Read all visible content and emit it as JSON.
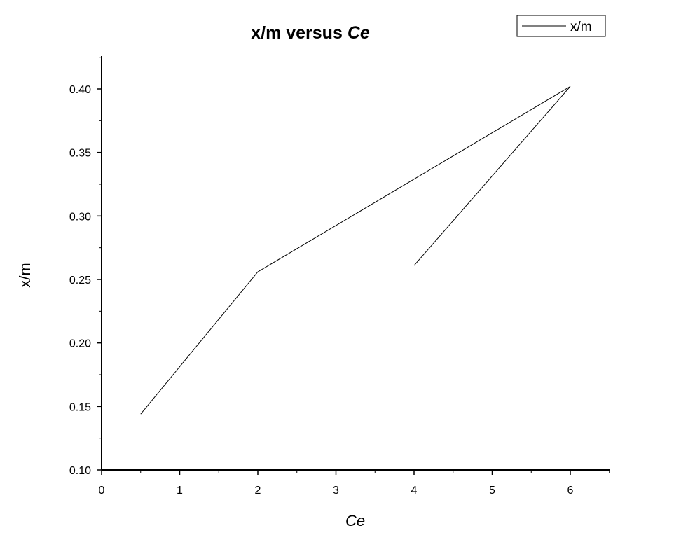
{
  "chart_data": {
    "type": "line",
    "title": "x/m versus Ce",
    "title_parts": [
      "x/m versus ",
      "Ce"
    ],
    "xlabel": "Ce",
    "ylabel": "x/m",
    "xlim": [
      0,
      6.5
    ],
    "ylim": [
      0.1,
      0.425
    ],
    "xticks": [
      0,
      1,
      2,
      3,
      4,
      5,
      6
    ],
    "xtick_labels": [
      "0",
      "1",
      "2",
      "3",
      "4",
      "5",
      "6"
    ],
    "yticks": [
      0.1,
      0.15,
      0.2,
      0.25,
      0.3,
      0.35,
      0.4
    ],
    "ytick_labels": [
      "0.10",
      "0.15",
      "0.20",
      "0.25",
      "0.30",
      "0.35",
      "0.40"
    ],
    "grid": false,
    "legend_position": "top-right",
    "line_color": "#000000",
    "series": [
      {
        "name": "x/m",
        "x": [
          0.5,
          2,
          6,
          4
        ],
        "y": [
          0.144,
          0.256,
          0.402,
          0.261
        ]
      }
    ]
  }
}
